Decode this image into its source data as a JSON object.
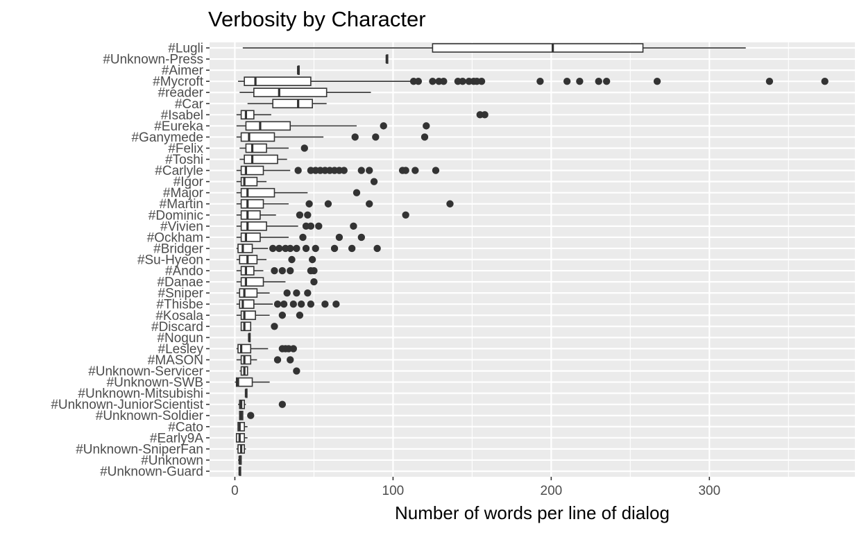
{
  "chart_data": {
    "type": "boxplot",
    "orientation": "horizontal",
    "title": "Verbosity by Character",
    "xlabel": "Number of words per line of dialog",
    "ylabel": "",
    "xlim": [
      -16,
      392
    ],
    "xticks": [
      0,
      100,
      200,
      300
    ],
    "grid": true,
    "legend": "none",
    "colors": {
      "panel": "#ebebeb",
      "grid_major": "#ffffff",
      "box_fill": "#ffffff",
      "box_line": "#333333",
      "outlier": "#333333",
      "axis_text": "#4d4d4d",
      "title": "#000000"
    },
    "categories": [
      {
        "name": "#Lugli",
        "q1": 125,
        "median": 201,
        "q3": 258,
        "lower": 5,
        "upper": 323,
        "outliers": []
      },
      {
        "name": "#Unknown-Press",
        "q1": 96,
        "median": 96,
        "q3": 96,
        "lower": 96,
        "upper": 96,
        "outliers": []
      },
      {
        "name": "#Aimer",
        "q1": 40,
        "median": 40,
        "q3": 40,
        "lower": 40,
        "upper": 40,
        "outliers": []
      },
      {
        "name": "#Mycroft",
        "q1": 6,
        "median": 13,
        "q3": 48,
        "lower": 2,
        "upper": 111,
        "outliers": [
          113,
          116,
          125,
          129,
          132,
          141,
          144,
          148,
          151,
          153,
          156,
          193,
          210,
          218,
          230,
          235,
          267,
          338,
          373
        ]
      },
      {
        "name": "#reader",
        "q1": 12,
        "median": 28,
        "q3": 58,
        "lower": 3,
        "upper": 86,
        "outliers": []
      },
      {
        "name": "#Car",
        "q1": 24,
        "median": 40,
        "q3": 49,
        "lower": 8,
        "upper": 58,
        "outliers": []
      },
      {
        "name": "#Isabel",
        "q1": 4,
        "median": 7,
        "q3": 12,
        "lower": 1,
        "upper": 23,
        "outliers": [
          155,
          158
        ]
      },
      {
        "name": "#Eureka",
        "q1": 7,
        "median": 16,
        "q3": 35,
        "lower": 1,
        "upper": 77,
        "outliers": [
          94,
          121
        ]
      },
      {
        "name": "#Ganymede",
        "q1": 4,
        "median": 9,
        "q3": 25,
        "lower": 1,
        "upper": 56,
        "outliers": [
          76,
          89,
          120
        ]
      },
      {
        "name": "#Felix",
        "q1": 7,
        "median": 11,
        "q3": 20,
        "lower": 3,
        "upper": 34,
        "outliers": [
          44
        ]
      },
      {
        "name": "#Toshi",
        "q1": 6,
        "median": 11,
        "q3": 27,
        "lower": 3,
        "upper": 33,
        "outliers": []
      },
      {
        "name": "#Carlyle",
        "q1": 4,
        "median": 7,
        "q3": 18,
        "lower": 1,
        "upper": 35,
        "outliers": [
          40,
          48,
          51,
          54,
          57,
          60,
          63,
          66,
          69,
          80,
          85,
          106,
          108,
          114,
          127
        ]
      },
      {
        "name": "#Igor",
        "q1": 4,
        "median": 6,
        "q3": 14,
        "lower": 1,
        "upper": 20,
        "outliers": [
          88
        ]
      },
      {
        "name": "#Major",
        "q1": 4,
        "median": 8,
        "q3": 25,
        "lower": 1,
        "upper": 46,
        "outliers": [
          77
        ]
      },
      {
        "name": "#Martin",
        "q1": 4,
        "median": 8,
        "q3": 18,
        "lower": 1,
        "upper": 34,
        "outliers": [
          47,
          59,
          85,
          136
        ]
      },
      {
        "name": "#Dominic",
        "q1": 4,
        "median": 8,
        "q3": 16,
        "lower": 1,
        "upper": 26,
        "outliers": [
          41,
          46,
          108
        ]
      },
      {
        "name": "#Vivien",
        "q1": 4,
        "median": 8,
        "q3": 20,
        "lower": 1,
        "upper": 40,
        "outliers": [
          45,
          48,
          53,
          75
        ]
      },
      {
        "name": "#Ockham",
        "q1": 4,
        "median": 7,
        "q3": 16,
        "lower": 1,
        "upper": 34,
        "outliers": [
          43,
          66,
          80
        ]
      },
      {
        "name": "#Bridger",
        "q1": 2,
        "median": 5,
        "q3": 11,
        "lower": 1,
        "upper": 21,
        "outliers": [
          24,
          28,
          32,
          35,
          39,
          45,
          51,
          63,
          74,
          90
        ]
      },
      {
        "name": "#Su-Hyeon",
        "q1": 3,
        "median": 8,
        "q3": 14,
        "lower": 1,
        "upper": 20,
        "outliers": [
          36,
          49
        ]
      },
      {
        "name": "#Ando",
        "q1": 4,
        "median": 7,
        "q3": 12,
        "lower": 1,
        "upper": 18,
        "outliers": [
          25,
          30,
          35,
          48,
          50
        ]
      },
      {
        "name": "#Danae",
        "q1": 4,
        "median": 7,
        "q3": 18,
        "lower": 1,
        "upper": 32,
        "outliers": [
          50
        ]
      },
      {
        "name": "#Sniper",
        "q1": 3,
        "median": 6,
        "q3": 14,
        "lower": 1,
        "upper": 22,
        "outliers": [
          33,
          39,
          46
        ]
      },
      {
        "name": "#Thisbe",
        "q1": 3,
        "median": 5,
        "q3": 12,
        "lower": 1,
        "upper": 24,
        "outliers": [
          27,
          31,
          37,
          42,
          48,
          57,
          64
        ]
      },
      {
        "name": "#Kosala",
        "q1": 4,
        "median": 6,
        "q3": 13,
        "lower": 1,
        "upper": 22,
        "outliers": [
          30,
          41
        ]
      },
      {
        "name": "#Discard",
        "q1": 4,
        "median": 6,
        "q3": 10,
        "lower": 4,
        "upper": 10,
        "outliers": [
          25
        ]
      },
      {
        "name": "#Nogun",
        "q1": 9,
        "median": 9,
        "q3": 9,
        "lower": 9,
        "upper": 9,
        "outliers": []
      },
      {
        "name": "#Lesley",
        "q1": 2,
        "median": 4,
        "q3": 10,
        "lower": 1,
        "upper": 21,
        "outliers": [
          30,
          32,
          34,
          37
        ]
      },
      {
        "name": "#MASON",
        "q1": 4,
        "median": 6,
        "q3": 10,
        "lower": 1,
        "upper": 14,
        "outliers": [
          27,
          35
        ]
      },
      {
        "name": "#Unknown-Servicer",
        "q1": 4,
        "median": 6,
        "q3": 8,
        "lower": 3,
        "upper": 8,
        "outliers": [
          39
        ]
      },
      {
        "name": "#Unknown-SWB",
        "q1": 1,
        "median": 2,
        "q3": 11,
        "lower": 0,
        "upper": 22,
        "outliers": []
      },
      {
        "name": "#Unknown-Mitsubishi",
        "q1": 7,
        "median": 7,
        "q3": 7,
        "lower": 7,
        "upper": 7,
        "outliers": []
      },
      {
        "name": "#Unknown-JuniorScientist",
        "q1": 3,
        "median": 4,
        "q3": 6,
        "lower": 2,
        "upper": 7,
        "outliers": [
          30
        ]
      },
      {
        "name": "#Unknown-Soldier",
        "q1": 3,
        "median": 4,
        "q3": 5,
        "lower": 3,
        "upper": 5,
        "outliers": [
          10
        ]
      },
      {
        "name": "#Cato",
        "q1": 2,
        "median": 3,
        "q3": 6,
        "lower": 2,
        "upper": 8,
        "outliers": []
      },
      {
        "name": "#Early9A",
        "q1": 1,
        "median": 3,
        "q3": 6,
        "lower": 1,
        "upper": 8,
        "outliers": []
      },
      {
        "name": "#Unknown-SniperFan",
        "q1": 2,
        "median": 4,
        "q3": 6,
        "lower": 1,
        "upper": 7,
        "outliers": []
      },
      {
        "name": "#Unknown",
        "q1": 3,
        "median": 3,
        "q3": 4,
        "lower": 2,
        "upper": 4,
        "outliers": []
      },
      {
        "name": "#Unknown-Guard",
        "q1": 3,
        "median": 3,
        "q3": 3,
        "lower": 3,
        "upper": 3,
        "outliers": []
      }
    ]
  }
}
